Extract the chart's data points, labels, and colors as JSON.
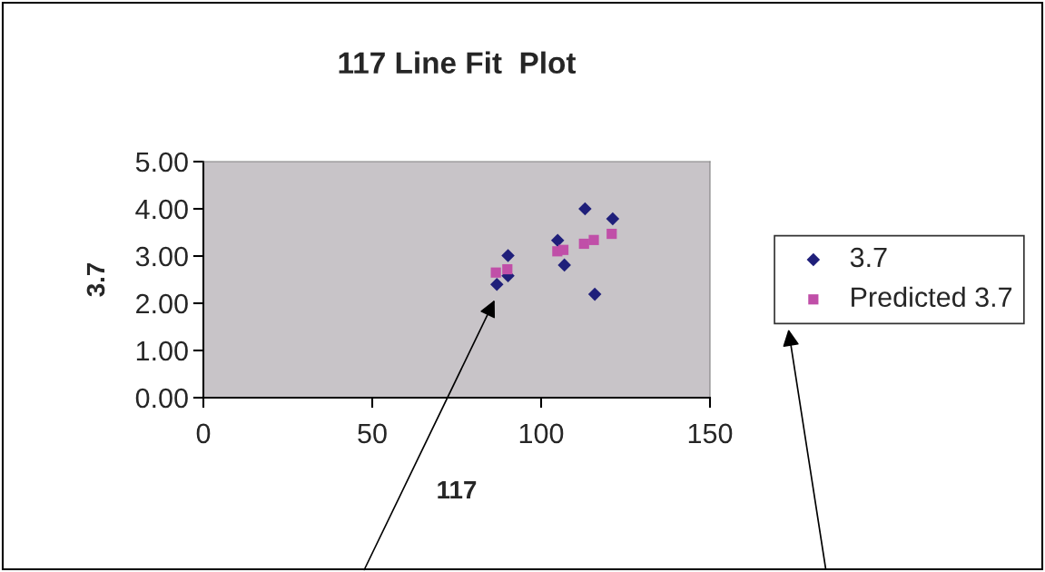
{
  "chart_data": {
    "type": "scatter",
    "title": "117 Line Fit  Plot",
    "xlabel": "117",
    "ylabel": "3.7",
    "series": [
      {
        "name": "3.7",
        "color": "#1f1f7a",
        "marker": "diamond",
        "x": [
          86.9,
          90.2,
          90.2,
          104.9,
          106.9,
          113.0,
          115.9,
          121.2
        ],
        "values": [
          2.4,
          3.01,
          2.58,
          3.33,
          2.81,
          4.0,
          2.19,
          3.79
        ]
      },
      {
        "name": "Predicted 3.7",
        "color": "#c04fa8",
        "marker": "square",
        "x": [
          86.6,
          90.0,
          104.8,
          106.6,
          112.7,
          115.6,
          120.9
        ],
        "values": [
          2.65,
          2.72,
          3.1,
          3.13,
          3.26,
          3.34,
          3.47
        ]
      }
    ],
    "xlim": [
      0,
      150
    ],
    "xticks": [
      0,
      50,
      100,
      150
    ],
    "ylim": [
      0,
      5
    ],
    "yticks": [
      {
        "value": 0,
        "label": "0.00"
      },
      {
        "value": 1,
        "label": "1.00"
      },
      {
        "value": 2,
        "label": "2.00"
      },
      {
        "value": 3,
        "label": "3.00"
      },
      {
        "value": 4,
        "label": "4.00"
      },
      {
        "value": 5,
        "label": "5.00"
      }
    ],
    "grid": false,
    "legend": "right"
  }
}
